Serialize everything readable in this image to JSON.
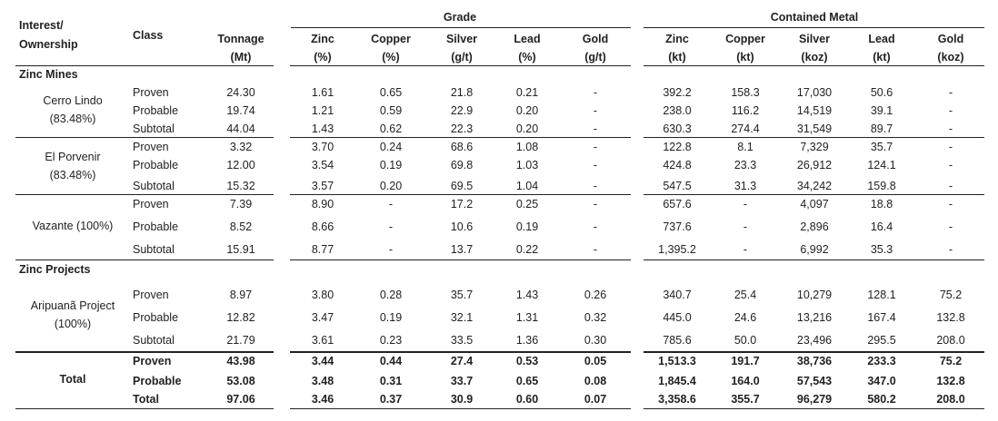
{
  "header": {
    "interest_ownership_1": "Interest/",
    "interest_ownership_2": "Ownership",
    "class": "Class",
    "tonnage_1": "Tonnage",
    "tonnage_2": "(Mt)",
    "grade_group": "Grade",
    "contained_group": "Contained Metal",
    "grade_cols": [
      {
        "name": "Zinc",
        "unit": "(%)"
      },
      {
        "name": "Copper",
        "unit": "(%)"
      },
      {
        "name": "Silver",
        "unit": "(g/t)"
      },
      {
        "name": "Lead",
        "unit": "(%)"
      },
      {
        "name": "Gold",
        "unit": "(g/t)"
      }
    ],
    "contained_cols": [
      {
        "name": "Zinc",
        "unit": "(kt)"
      },
      {
        "name": "Copper",
        "unit": "(kt)"
      },
      {
        "name": "Silver",
        "unit": "(koz)"
      },
      {
        "name": "Lead",
        "unit": "(kt)"
      },
      {
        "name": "Gold",
        "unit": "(koz)"
      }
    ]
  },
  "sections": [
    {
      "title": "Zinc Mines"
    },
    {
      "title": "Zinc Projects"
    }
  ],
  "groups": [
    {
      "name_lines": [
        "Cerro Lindo",
        "(83.48%)"
      ],
      "rows": [
        {
          "class": "Proven",
          "tonnage": "24.30",
          "grade": [
            "1.61",
            "0.65",
            "21.8",
            "0.21",
            "-"
          ],
          "metal": [
            "392.2",
            "158.3",
            "17,030",
            "50.6",
            "-"
          ]
        },
        {
          "class": "Probable",
          "tonnage": "19.74",
          "grade": [
            "1.21",
            "0.59",
            "22.9",
            "0.20",
            "-"
          ],
          "metal": [
            "238.0",
            "116.2",
            "14,519",
            "39.1",
            "-"
          ]
        },
        {
          "class": "Subtotal",
          "tonnage": "44.04",
          "grade": [
            "1.43",
            "0.62",
            "22.3",
            "0.20",
            "-"
          ],
          "metal": [
            "630.3",
            "274.4",
            "31,549",
            "89.7",
            "-"
          ]
        }
      ]
    },
    {
      "name_lines": [
        "El Porvenir",
        "(83.48%)"
      ],
      "rows": [
        {
          "class": "Proven",
          "tonnage": "3.32",
          "grade": [
            "3.70",
            "0.24",
            "68.6",
            "1.08",
            "-"
          ],
          "metal": [
            "122.8",
            "8.1",
            "7,329",
            "35.7",
            "-"
          ]
        },
        {
          "class": "Probable",
          "tonnage": "12.00",
          "grade": [
            "3.54",
            "0.19",
            "69.8",
            "1.03",
            "-"
          ],
          "metal": [
            "424.8",
            "23.3",
            "26,912",
            "124.1",
            "-"
          ]
        },
        {
          "class": "Subtotal",
          "tonnage": "15.32",
          "grade": [
            "3.57",
            "0.20",
            "69.5",
            "1.04",
            "-"
          ],
          "metal": [
            "547.5",
            "31.3",
            "34,242",
            "159.8",
            "-"
          ]
        }
      ]
    },
    {
      "name_lines": [
        "Vazante (100%)"
      ],
      "rows": [
        {
          "class": "Proven",
          "tonnage": "7.39",
          "grade": [
            "8.90",
            "-",
            "17.2",
            "0.25",
            "-"
          ],
          "metal": [
            "657.6",
            "-",
            "4,097",
            "18.8",
            "-"
          ]
        },
        {
          "class": "Probable",
          "tonnage": "8.52",
          "grade": [
            "8.66",
            "-",
            "10.6",
            "0.19",
            "-"
          ],
          "metal": [
            "737.6",
            "-",
            "2,896",
            "16.4",
            "-"
          ]
        },
        {
          "class": "Subtotal",
          "tonnage": "15.91",
          "grade": [
            "8.77",
            "-",
            "13.7",
            "0.22",
            "-"
          ],
          "metal": [
            "1,395.2",
            "-",
            "6,992",
            "35.3",
            "-"
          ]
        }
      ]
    },
    {
      "name_lines": [
        "Aripuanã Project",
        "(100%)"
      ],
      "rows": [
        {
          "class": "Proven",
          "tonnage": "8.97",
          "grade": [
            "3.80",
            "0.28",
            "35.7",
            "1.43",
            "0.26"
          ],
          "metal": [
            "340.7",
            "25.4",
            "10,279",
            "128.1",
            "75.2"
          ]
        },
        {
          "class": "Probable",
          "tonnage": "12.82",
          "grade": [
            "3.47",
            "0.19",
            "32.1",
            "1.31",
            "0.32"
          ],
          "metal": [
            "445.0",
            "24.6",
            "13,216",
            "167.4",
            "132.8"
          ]
        },
        {
          "class": "Subtotal",
          "tonnage": "21.79",
          "grade": [
            "3.61",
            "0.23",
            "33.5",
            "1.36",
            "0.30"
          ],
          "metal": [
            "785.6",
            "50.0",
            "23,496",
            "295.5",
            "208.0"
          ]
        }
      ]
    },
    {
      "name_lines": [
        "Total"
      ],
      "rows": [
        {
          "class": "Proven",
          "tonnage": "43.98",
          "grade": [
            "3.44",
            "0.44",
            "27.4",
            "0.53",
            "0.05"
          ],
          "metal": [
            "1,513.3",
            "191.7",
            "38,736",
            "233.3",
            "75.2"
          ]
        },
        {
          "class": "Probable",
          "tonnage": "53.08",
          "grade": [
            "3.48",
            "0.31",
            "33.7",
            "0.65",
            "0.08"
          ],
          "metal": [
            "1,845.4",
            "164.0",
            "57,543",
            "347.0",
            "132.8"
          ]
        },
        {
          "class": "Total",
          "tonnage": "97.06",
          "grade": [
            "3.46",
            "0.37",
            "30.9",
            "0.60",
            "0.07"
          ],
          "metal": [
            "3,358.6",
            "355.7",
            "96,279",
            "580.2",
            "208.0"
          ]
        }
      ]
    }
  ]
}
